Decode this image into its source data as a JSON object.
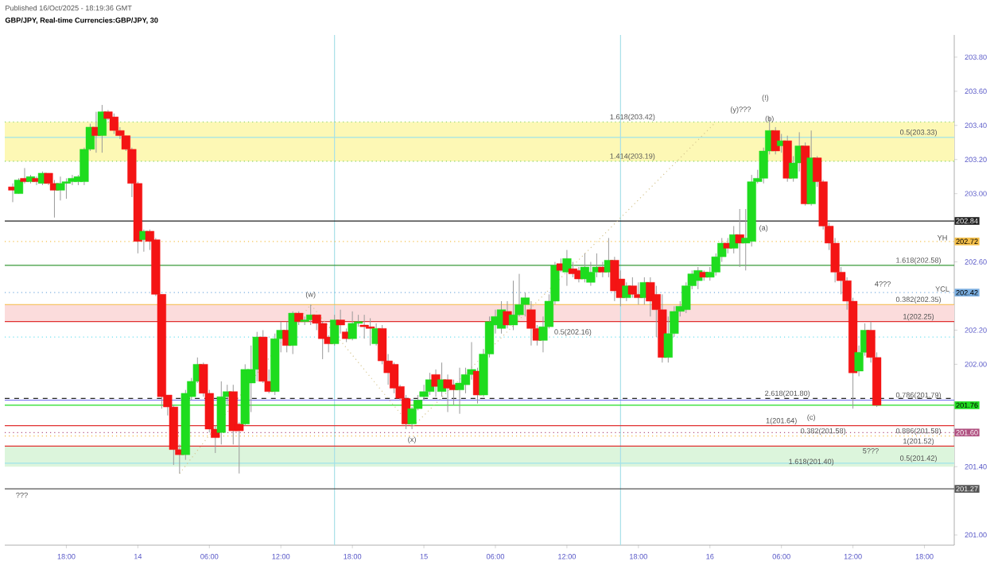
{
  "chart_data": {
    "type": "candlestick",
    "title": "GBP/JPY, Real-time Currencies:GBP/JPY, 30",
    "xlim": [
      "2025-10-13T12:50",
      "2025-10-16T20:30"
    ],
    "ylim": [
      200.94,
      203.93
    ],
    "yticks": [
      {
        "value": 203.8,
        "label": "203.80"
      },
      {
        "value": 203.6,
        "label": "203.60"
      },
      {
        "value": 203.4,
        "label": "203.40"
      },
      {
        "value": 203.2,
        "label": "203.20"
      },
      {
        "value": 203.0,
        "label": "203.00"
      },
      {
        "value": 202.6,
        "label": "202.60"
      },
      {
        "value": 202.2,
        "label": "202.20"
      },
      {
        "value": 202.0,
        "label": "202.00"
      },
      {
        "value": 201.4,
        "label": "201.40"
      },
      {
        "value": 201.0,
        "label": "201.00"
      }
    ],
    "xticks": [
      {
        "value": "2025-10-13T18:00",
        "label": "18:00"
      },
      {
        "value": "2025-10-14T00:00",
        "label": "14"
      },
      {
        "value": "2025-10-14T06:00",
        "label": "06:00"
      },
      {
        "value": "2025-10-14T12:00",
        "label": "12:00"
      },
      {
        "value": "2025-10-14T18:00",
        "label": "18:00"
      },
      {
        "value": "2025-10-15T00:00",
        "label": "15"
      },
      {
        "value": "2025-10-15T06:00",
        "label": "06:00"
      },
      {
        "value": "2025-10-15T12:00",
        "label": "12:00"
      },
      {
        "value": "2025-10-15T18:00",
        "label": "18:00"
      },
      {
        "value": "2025-10-16T00:00",
        "label": "16"
      },
      {
        "value": "2025-10-16T06:00",
        "label": "06:00"
      },
      {
        "value": "2025-10-16T12:00",
        "label": "12:00"
      },
      {
        "value": "2025-10-16T18:00",
        "label": "18:00"
      }
    ],
    "x": [
      "2025-10-13T13:30",
      "2025-10-13T14:00",
      "2025-10-13T14:30",
      "2025-10-13T15:00",
      "2025-10-13T15:30",
      "2025-10-13T16:00",
      "2025-10-13T16:30",
      "2025-10-13T17:00",
      "2025-10-13T17:30",
      "2025-10-13T18:00",
      "2025-10-13T18:30",
      "2025-10-13T19:00",
      "2025-10-13T19:30",
      "2025-10-13T20:00",
      "2025-10-13T20:30",
      "2025-10-13T21:00",
      "2025-10-13T21:30",
      "2025-10-13T22:00",
      "2025-10-13T22:30",
      "2025-10-13T23:00",
      "2025-10-13T23:30",
      "2025-10-14T00:00",
      "2025-10-14T00:30",
      "2025-10-14T01:00",
      "2025-10-14T01:30",
      "2025-10-14T02:00",
      "2025-10-14T02:30",
      "2025-10-14T03:00",
      "2025-10-14T03:30",
      "2025-10-14T04:00",
      "2025-10-14T04:30",
      "2025-10-14T05:00",
      "2025-10-14T05:30",
      "2025-10-14T06:00",
      "2025-10-14T06:30",
      "2025-10-14T07:00",
      "2025-10-14T07:30",
      "2025-10-14T08:00",
      "2025-10-14T08:30",
      "2025-10-14T09:00",
      "2025-10-14T09:30",
      "2025-10-14T10:00",
      "2025-10-14T10:30",
      "2025-10-14T11:00",
      "2025-10-14T11:30",
      "2025-10-14T12:00",
      "2025-10-14T12:30",
      "2025-10-14T13:00",
      "2025-10-14T13:30",
      "2025-10-14T14:00",
      "2025-10-14T14:30",
      "2025-10-14T15:00",
      "2025-10-14T15:30",
      "2025-10-14T16:00",
      "2025-10-14T16:30",
      "2025-10-14T17:00",
      "2025-10-14T17:30",
      "2025-10-14T18:00",
      "2025-10-14T18:30",
      "2025-10-14T19:00",
      "2025-10-14T19:30",
      "2025-10-14T20:00",
      "2025-10-14T20:30",
      "2025-10-14T21:00",
      "2025-10-14T21:30",
      "2025-10-14T22:00",
      "2025-10-14T22:30",
      "2025-10-14T23:00",
      "2025-10-14T23:30",
      "2025-10-15T00:00",
      "2025-10-15T00:30",
      "2025-10-15T01:00",
      "2025-10-15T01:30",
      "2025-10-15T02:00",
      "2025-10-15T02:30",
      "2025-10-15T03:00",
      "2025-10-15T03:30",
      "2025-10-15T04:00",
      "2025-10-15T04:30",
      "2025-10-15T05:00",
      "2025-10-15T05:30",
      "2025-10-15T06:00",
      "2025-10-15T06:30",
      "2025-10-15T07:00",
      "2025-10-15T07:30",
      "2025-10-15T08:00",
      "2025-10-15T08:30",
      "2025-10-15T09:00",
      "2025-10-15T09:30",
      "2025-10-15T10:00",
      "2025-10-15T10:30",
      "2025-10-15T11:00",
      "2025-10-15T11:30",
      "2025-10-15T12:00",
      "2025-10-15T12:30",
      "2025-10-15T13:00",
      "2025-10-15T13:30",
      "2025-10-15T14:00",
      "2025-10-15T14:30",
      "2025-10-15T15:00",
      "2025-10-15T15:30",
      "2025-10-15T16:00",
      "2025-10-15T16:30",
      "2025-10-15T17:00",
      "2025-10-15T17:30",
      "2025-10-15T18:00",
      "2025-10-15T18:30",
      "2025-10-15T19:00",
      "2025-10-15T19:30",
      "2025-10-15T20:00",
      "2025-10-15T20:30",
      "2025-10-15T21:00",
      "2025-10-15T21:30",
      "2025-10-15T22:00",
      "2025-10-15T22:30",
      "2025-10-15T23:00",
      "2025-10-15T23:30",
      "2025-10-16T00:00",
      "2025-10-16T00:30",
      "2025-10-16T01:00",
      "2025-10-16T01:30",
      "2025-10-16T02:00",
      "2025-10-16T02:30",
      "2025-10-16T03:00",
      "2025-10-16T03:30",
      "2025-10-16T04:00",
      "2025-10-16T04:30",
      "2025-10-16T05:00",
      "2025-10-16T05:30",
      "2025-10-16T06:00",
      "2025-10-16T06:30",
      "2025-10-16T07:00",
      "2025-10-16T07:30",
      "2025-10-16T08:00",
      "2025-10-16T08:30",
      "2025-10-16T09:00",
      "2025-10-16T09:30",
      "2025-10-16T10:00",
      "2025-10-16T10:30",
      "2025-10-16T11:00",
      "2025-10-16T11:30",
      "2025-10-16T12:00",
      "2025-10-16T12:30",
      "2025-10-16T13:00",
      "2025-10-16T13:30",
      "2025-10-16T14:00"
    ],
    "ohlc": [
      [
        203.04,
        203.06,
        202.95,
        203.02
      ],
      [
        203.0,
        203.09,
        203.0,
        203.08
      ],
      [
        203.09,
        203.15,
        203.06,
        203.07
      ],
      [
        203.07,
        203.11,
        203.06,
        203.1
      ],
      [
        203.09,
        203.1,
        203.05,
        203.07
      ],
      [
        203.06,
        203.13,
        203.05,
        203.12
      ],
      [
        203.12,
        203.12,
        203.05,
        203.06
      ],
      [
        203.06,
        203.08,
        202.86,
        203.02
      ],
      [
        203.02,
        203.1,
        202.96,
        203.06
      ],
      [
        203.06,
        203.09,
        202.97,
        203.07
      ],
      [
        203.07,
        203.11,
        203.05,
        203.09
      ],
      [
        203.07,
        203.11,
        203.05,
        203.1
      ],
      [
        203.07,
        203.27,
        203.05,
        203.26
      ],
      [
        203.26,
        203.41,
        203.25,
        203.39
      ],
      [
        203.39,
        203.48,
        203.24,
        203.34
      ],
      [
        203.34,
        203.52,
        203.24,
        203.48
      ],
      [
        203.48,
        203.49,
        203.43,
        203.44
      ],
      [
        203.45,
        203.47,
        203.35,
        203.37
      ],
      [
        203.37,
        203.39,
        203.32,
        203.34
      ],
      [
        203.34,
        203.34,
        203.25,
        203.26
      ],
      [
        203.26,
        203.27,
        202.98,
        203.06
      ],
      [
        203.06,
        203.07,
        202.65,
        202.72
      ],
      [
        202.73,
        202.79,
        202.66,
        202.78
      ],
      [
        202.78,
        202.79,
        202.67,
        202.72
      ],
      [
        202.73,
        202.74,
        202.4,
        202.41
      ],
      [
        202.41,
        202.41,
        201.74,
        201.81
      ],
      [
        201.82,
        201.82,
        201.7,
        201.75
      ],
      [
        201.75,
        201.76,
        201.41,
        201.5
      ],
      [
        201.5,
        201.53,
        201.36,
        201.47
      ],
      [
        201.47,
        201.85,
        201.44,
        201.83
      ],
      [
        201.81,
        201.92,
        201.79,
        201.9
      ],
      [
        201.9,
        202.04,
        201.89,
        202.0
      ],
      [
        202.0,
        202.01,
        201.81,
        201.83
      ],
      [
        201.83,
        201.85,
        201.6,
        201.62
      ],
      [
        201.62,
        201.64,
        201.48,
        201.57
      ],
      [
        201.6,
        201.9,
        201.53,
        201.81
      ],
      [
        201.81,
        201.88,
        201.76,
        201.84
      ],
      [
        201.84,
        201.88,
        201.53,
        201.61
      ],
      [
        201.65,
        201.66,
        201.36,
        201.61
      ],
      [
        201.65,
        202.0,
        201.64,
        201.97
      ],
      [
        201.89,
        202.11,
        201.72,
        201.97
      ],
      [
        201.97,
        202.19,
        201.9,
        202.16
      ],
      [
        202.16,
        202.2,
        201.89,
        201.9
      ],
      [
        201.9,
        201.97,
        201.83,
        201.84
      ],
      [
        201.84,
        202.18,
        201.82,
        202.15
      ],
      [
        202.15,
        202.25,
        202.07,
        202.2
      ],
      [
        202.2,
        202.25,
        202.07,
        202.11
      ],
      [
        202.11,
        202.31,
        202.06,
        202.3
      ],
      [
        202.3,
        202.31,
        202.23,
        202.25
      ],
      [
        202.25,
        202.28,
        202.23,
        202.26
      ],
      [
        202.26,
        202.35,
        202.23,
        202.29
      ],
      [
        202.29,
        202.29,
        202.2,
        202.24
      ],
      [
        202.24,
        202.25,
        202.03,
        202.15
      ],
      [
        202.16,
        202.17,
        202.07,
        202.12
      ],
      [
        202.12,
        202.29,
        202.11,
        202.26
      ],
      [
        202.26,
        202.32,
        202.18,
        202.23
      ],
      [
        202.19,
        202.21,
        202.13,
        202.15
      ],
      [
        202.15,
        202.31,
        202.14,
        202.24
      ],
      [
        202.24,
        202.29,
        202.22,
        202.25
      ],
      [
        202.23,
        202.29,
        202.15,
        202.22
      ],
      [
        202.22,
        202.27,
        202.11,
        202.21
      ],
      [
        202.12,
        202.24,
        202.11,
        202.21
      ],
      [
        202.21,
        202.23,
        202.0,
        202.02
      ],
      [
        202.02,
        202.06,
        201.88,
        201.95
      ],
      [
        202.0,
        202.01,
        201.83,
        201.86
      ],
      [
        201.87,
        201.88,
        201.79,
        201.8
      ],
      [
        201.8,
        201.82,
        201.62,
        201.65
      ],
      [
        201.65,
        201.75,
        201.62,
        201.74
      ],
      [
        201.74,
        201.82,
        201.73,
        201.79
      ],
      [
        201.81,
        201.88,
        201.79,
        201.84
      ],
      [
        201.84,
        201.95,
        201.82,
        201.91
      ],
      [
        201.94,
        201.97,
        201.81,
        201.87
      ],
      [
        201.84,
        202.01,
        201.81,
        201.91
      ],
      [
        201.91,
        201.94,
        201.72,
        201.86
      ],
      [
        201.88,
        201.91,
        201.76,
        201.85
      ],
      [
        201.85,
        201.98,
        201.71,
        201.89
      ],
      [
        201.88,
        201.98,
        201.83,
        201.94
      ],
      [
        201.94,
        202.13,
        201.91,
        201.97
      ],
      [
        201.96,
        201.98,
        201.77,
        201.82
      ],
      [
        201.82,
        202.09,
        201.81,
        202.06
      ],
      [
        202.06,
        202.28,
        202.04,
        202.25
      ],
      [
        202.23,
        202.32,
        202.18,
        202.28
      ],
      [
        202.21,
        202.37,
        202.18,
        202.32
      ],
      [
        202.31,
        202.37,
        202.21,
        202.23
      ],
      [
        202.23,
        202.49,
        202.2,
        202.29
      ],
      [
        202.29,
        202.53,
        202.28,
        202.35
      ],
      [
        202.35,
        202.42,
        202.28,
        202.39
      ],
      [
        202.32,
        202.37,
        202.11,
        202.21
      ],
      [
        202.21,
        202.23,
        202.11,
        202.14
      ],
      [
        202.14,
        202.28,
        202.07,
        202.22
      ],
      [
        202.22,
        202.41,
        202.21,
        202.37
      ],
      [
        202.37,
        202.6,
        202.35,
        202.58
      ],
      [
        202.59,
        202.62,
        202.54,
        202.55
      ],
      [
        202.54,
        202.67,
        202.46,
        202.62
      ],
      [
        202.56,
        202.6,
        202.51,
        202.53
      ],
      [
        202.55,
        202.57,
        202.48,
        202.5
      ],
      [
        202.5,
        202.65,
        202.48,
        202.57
      ],
      [
        202.48,
        202.6,
        202.46,
        202.54
      ],
      [
        202.54,
        202.65,
        202.51,
        202.57
      ],
      [
        202.57,
        202.6,
        202.51,
        202.54
      ],
      [
        202.54,
        202.74,
        202.51,
        202.61
      ],
      [
        202.61,
        202.63,
        202.37,
        202.43
      ],
      [
        202.5,
        202.55,
        202.34,
        202.39
      ],
      [
        202.39,
        202.48,
        202.37,
        202.46
      ],
      [
        202.46,
        202.51,
        202.39,
        202.41
      ],
      [
        202.41,
        202.48,
        202.35,
        202.39
      ],
      [
        202.39,
        202.51,
        202.35,
        202.48
      ],
      [
        202.48,
        202.51,
        202.28,
        202.37
      ],
      [
        202.41,
        202.46,
        202.16,
        202.32
      ],
      [
        202.32,
        202.41,
        202.01,
        202.04
      ],
      [
        202.04,
        202.28,
        202.01,
        202.18
      ],
      [
        202.18,
        202.34,
        202.16,
        202.31
      ],
      [
        202.31,
        202.37,
        202.28,
        202.34
      ],
      [
        202.32,
        202.48,
        202.3,
        202.46
      ],
      [
        202.46,
        202.55,
        202.44,
        202.53
      ],
      [
        202.49,
        202.57,
        202.44,
        202.55
      ],
      [
        202.54,
        202.55,
        202.49,
        202.51
      ],
      [
        202.51,
        202.57,
        202.49,
        202.54
      ],
      [
        202.54,
        202.65,
        202.52,
        202.63
      ],
      [
        202.63,
        202.74,
        202.6,
        202.71
      ],
      [
        202.71,
        202.74,
        202.65,
        202.68
      ],
      [
        202.68,
        202.81,
        202.65,
        202.76
      ],
      [
        202.76,
        202.91,
        202.57,
        202.71
      ],
      [
        202.71,
        202.91,
        202.55,
        202.74
      ],
      [
        202.72,
        203.11,
        202.69,
        203.07
      ],
      [
        203.07,
        203.14,
        203.06,
        203.09
      ],
      [
        203.09,
        203.27,
        203.06,
        203.25
      ],
      [
        203.25,
        203.45,
        203.23,
        203.37
      ],
      [
        203.37,
        203.39,
        203.23,
        203.25
      ],
      [
        203.28,
        203.35,
        203.24,
        203.31
      ],
      [
        203.31,
        203.34,
        203.07,
        203.09
      ],
      [
        203.09,
        203.22,
        203.07,
        203.18
      ],
      [
        203.18,
        203.36,
        203.13,
        203.28
      ],
      [
        203.28,
        203.3,
        202.93,
        202.94
      ],
      [
        202.94,
        203.37,
        202.93,
        203.21
      ],
      [
        203.21,
        203.22,
        203.04,
        203.07
      ],
      [
        203.07,
        203.08,
        202.79,
        202.81
      ],
      [
        202.81,
        202.83,
        202.67,
        202.71
      ],
      [
        202.71,
        202.74,
        202.48,
        202.54
      ],
      [
        202.54,
        202.57,
        202.41,
        202.49
      ],
      [
        202.49,
        202.51,
        202.32,
        202.37
      ],
      [
        202.37,
        202.39,
        201.74,
        201.95
      ],
      [
        201.96,
        202.11,
        201.93,
        202.07
      ],
      [
        202.07,
        202.24,
        202.05,
        202.2
      ],
      [
        202.2,
        202.25,
        202.01,
        202.04
      ],
      [
        202.04,
        202.07,
        201.75,
        201.76
      ]
    ],
    "series": [
      {
        "type": "line",
        "x": [
          "2025-10-14T03:30",
          "2025-10-14T14:30",
          "2025-10-14T23:00",
          "2025-10-16T00:30"
        ],
        "values": [
          201.36,
          202.35,
          201.63,
          203.42
        ],
        "color": "#d6c58f",
        "line_style": "dotted"
      }
    ],
    "bands": [
      {
        "axis": "y",
        "from": 203.19,
        "to": 203.42,
        "color": "#fdf8b5"
      },
      {
        "axis": "y",
        "from": 202.25,
        "to": 202.35,
        "color": "#fbdcdc"
      },
      {
        "axis": "y",
        "from": 201.4,
        "to": 201.52,
        "color": "#dcf5dc"
      }
    ],
    "ref_lines": [
      {
        "axis": "x",
        "value": "2025-10-14T16:30",
        "color": "#a8e0e8"
      },
      {
        "axis": "x",
        "value": "2025-10-15T16:30",
        "color": "#a8e0e8"
      },
      {
        "axis": "y",
        "value": 203.42,
        "color": "#7fcf5f",
        "line_style": "dotted"
      },
      {
        "axis": "y",
        "value": 203.33,
        "color": "#9fe3ea"
      },
      {
        "axis": "y",
        "value": 203.19,
        "color": "#7fcf5f",
        "line_style": "dotted"
      },
      {
        "axis": "y",
        "value": 202.84,
        "color": "#222222",
        "label": "202.84"
      },
      {
        "axis": "y",
        "value": 202.72,
        "color": "#f5c04a",
        "line_style": "dotted",
        "label": "202.72"
      },
      {
        "axis": "y",
        "value": 202.58,
        "color": "#3a9a3a"
      },
      {
        "axis": "y",
        "value": 202.42,
        "color": "#7aaee0",
        "line_style": "dotted",
        "label": "202.42"
      },
      {
        "axis": "y",
        "value": 202.35,
        "color": "#f5b942"
      },
      {
        "axis": "y",
        "value": 202.25,
        "color": "#e03030"
      },
      {
        "axis": "y",
        "value": 202.16,
        "color": "#6fe0f0",
        "line_style": "dotted"
      },
      {
        "axis": "y",
        "value": 201.8,
        "color": "#222222",
        "line_style": "dashed"
      },
      {
        "axis": "y",
        "value": 201.79,
        "color": "#6f6ff0"
      },
      {
        "axis": "y",
        "value": 201.76,
        "color": "#22dd22",
        "label": "201.76"
      },
      {
        "axis": "y",
        "value": 201.64,
        "color": "#e03030"
      },
      {
        "axis": "y",
        "value": 201.6,
        "color": "#b05080",
        "line_style": "dotted",
        "label": "201.60"
      },
      {
        "axis": "y",
        "value": 201.58,
        "color": "#f5b942",
        "line_style": "dotted"
      },
      {
        "axis": "y",
        "value": 201.52,
        "color": "#e03030"
      },
      {
        "axis": "y",
        "value": 201.42,
        "color": "#9fe3ea"
      },
      {
        "axis": "y",
        "value": 201.27,
        "color": "#555555",
        "label": "201.27"
      }
    ],
    "annotations": [
      "Published 16/Oct/2025 - 18:19:36 GMT",
      {
        "text": "1.618(203.42)",
        "x": "2025-10-15T17:30",
        "y": 203.42
      },
      {
        "text": "1.414(203.19)",
        "x": "2025-10-15T17:30",
        "y": 203.19
      },
      {
        "text": "0.5(203.33)",
        "x": "2025-10-16T17:30",
        "y": 203.33
      },
      {
        "text": "YH",
        "x": "2025-10-16T19:30",
        "y": 202.72
      },
      {
        "text": "1.618(202.58)",
        "x": "2025-10-16T17:30",
        "y": 202.58
      },
      {
        "text": "YCL",
        "x": "2025-10-16T19:30",
        "y": 202.42
      },
      {
        "text": "4???",
        "x": "2025-10-16T14:30",
        "y": 202.45
      },
      {
        "text": "0.382(202.35)",
        "x": "2025-10-16T17:30",
        "y": 202.35
      },
      {
        "text": "1(202.25)",
        "x": "2025-10-16T17:30",
        "y": 202.25
      },
      {
        "text": "0.5(202.16)",
        "x": "2025-10-15T12:30",
        "y": 202.16
      },
      {
        "text": "2.618(201.80)",
        "x": "2025-10-16T06:30",
        "y": 201.8
      },
      {
        "text": "0.786(201.79)",
        "x": "2025-10-16T17:30",
        "y": 201.79
      },
      {
        "text": "1(201.64)",
        "x": "2025-10-16T06:00",
        "y": 201.64
      },
      {
        "text": "0.382(201.58)",
        "x": "2025-10-16T09:30",
        "y": 201.58
      },
      {
        "text": "0.886(201.58)",
        "x": "2025-10-16T17:30",
        "y": 201.58
      },
      {
        "text": "1(201.52)",
        "x": "2025-10-16T17:30",
        "y": 201.52
      },
      {
        "text": "0.5(201.42)",
        "x": "2025-10-16T17:30",
        "y": 201.42
      },
      {
        "text": "1.618(201.40)",
        "x": "2025-10-16T08:30",
        "y": 201.4
      },
      {
        "text": "(w)",
        "x": "2025-10-14T14:30",
        "y": 202.38
      },
      {
        "text": "(x)",
        "x": "2025-10-14T23:00",
        "y": 201.53
      },
      {
        "text": "(b)",
        "x": "2025-10-16T05:00",
        "y": 203.41
      },
      {
        "text": "(a)",
        "x": "2025-10-16T04:30",
        "y": 202.77
      },
      {
        "text": "(c)",
        "x": "2025-10-16T08:30",
        "y": 201.66
      },
      "5???",
      "???",
      "(y)???",
      "(!)"
    ]
  }
}
